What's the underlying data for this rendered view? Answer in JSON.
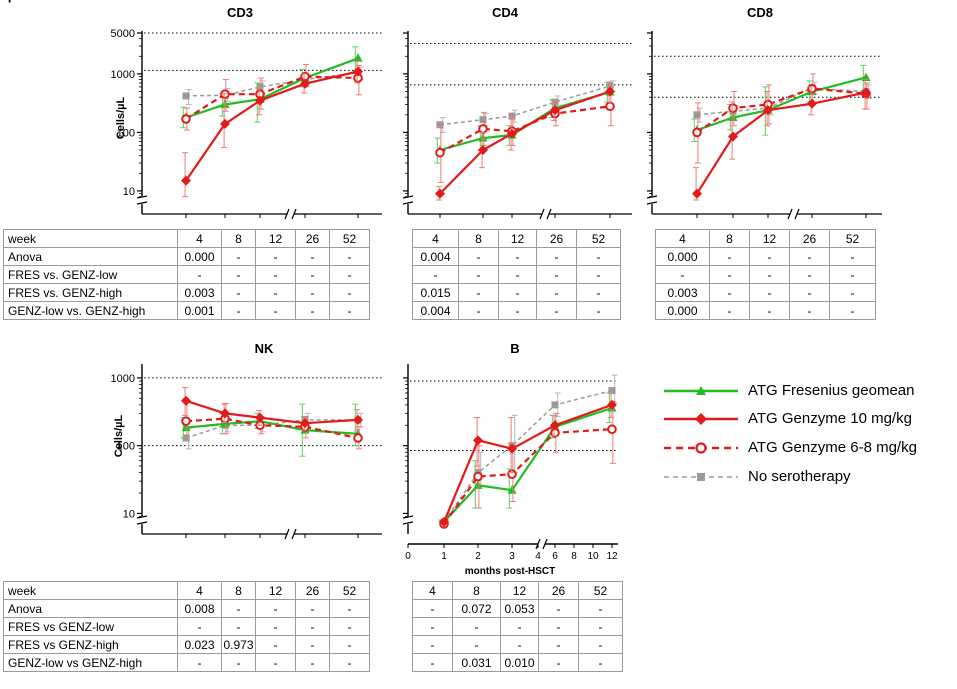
{
  "chart_data": [
    {
      "id": "cd3",
      "type": "line",
      "title": "CD3",
      "ylabel": "Cells/µL",
      "yscale": "log",
      "ylim": [
        7,
        5000
      ],
      "yticks": [
        10,
        100,
        1000,
        5000
      ],
      "ytick_labels": [
        "10",
        "100",
        "1000",
        "5000"
      ],
      "x": [
        4,
        8,
        12,
        26,
        52
      ],
      "reference_lines": [
        5000,
        1150
      ],
      "series": [
        {
          "name": "ATG Fresenius geomean",
          "values": [
            180,
            300,
            370,
            850,
            1850
          ],
          "err_low": [
            120,
            190,
            150,
            600,
            1050
          ],
          "err_high": [
            270,
            460,
            700,
            1200,
            2900
          ]
        },
        {
          "name": "ATG Genzyme 10 mg/kg",
          "values": [
            15,
            140,
            350,
            680,
            1100
          ],
          "err_low": [
            8,
            55,
            200,
            470,
            700
          ],
          "err_high": [
            45,
            460,
            560,
            1000,
            1650
          ]
        },
        {
          "name": "ATG Genzyme 6-8 mg/kg",
          "values": [
            170,
            450,
            450,
            900,
            850
          ],
          "err_low": [
            110,
            230,
            250,
            600,
            440
          ],
          "err_high": [
            260,
            800,
            850,
            1450,
            1400
          ]
        },
        {
          "name": "No serotherapy",
          "values": [
            420,
            430,
            600,
            800,
            1050
          ],
          "err_low": [
            300,
            340,
            460,
            620,
            800
          ],
          "err_high": [
            540,
            560,
            760,
            1000,
            1300
          ]
        }
      ]
    },
    {
      "id": "cd4",
      "type": "line",
      "title": "CD4",
      "ylabel": "Cells/µL",
      "yscale": "log",
      "ylim": [
        7,
        5000
      ],
      "yticks": [
        10,
        100,
        1000,
        5000
      ],
      "ytick_labels": [
        "",
        "",
        "",
        ""
      ],
      "x": [
        4,
        8,
        12,
        26,
        52
      ],
      "reference_lines": [
        3300,
        650
      ],
      "series": [
        {
          "name": "ATG Fresenius geomean",
          "values": [
            50,
            80,
            90,
            260,
            490
          ],
          "err_low": [
            30,
            50,
            60,
            180,
            330
          ],
          "err_high": [
            80,
            130,
            130,
            360,
            720
          ]
        },
        {
          "name": "ATG Genzyme 10 mg/kg",
          "values": [
            9,
            50,
            95,
            240,
            500
          ],
          "err_low": [
            7,
            25,
            50,
            160,
            330
          ],
          "err_high": [
            12,
            100,
            170,
            350,
            720
          ]
        },
        {
          "name": "ATG Genzyme 6-8 mg/kg",
          "values": [
            45,
            115,
            105,
            210,
            280
          ],
          "err_low": [
            14,
            60,
            60,
            130,
            130
          ],
          "err_high": [
            140,
            220,
            190,
            330,
            600
          ]
        },
        {
          "name": "No serotherapy",
          "values": [
            135,
            165,
            190,
            330,
            620
          ],
          "err_low": [
            100,
            130,
            150,
            260,
            500
          ],
          "err_high": [
            180,
            210,
            240,
            420,
            760
          ]
        }
      ]
    },
    {
      "id": "cd8",
      "type": "line",
      "title": "CD8",
      "ylabel": "Cells/µL",
      "yscale": "log",
      "ylim": [
        7,
        5000
      ],
      "yticks": [
        10,
        100,
        1000,
        5000
      ],
      "ytick_labels": [
        "",
        "",
        "",
        ""
      ],
      "x": [
        4,
        8,
        12,
        26,
        52
      ],
      "reference_lines": [
        2000,
        400
      ],
      "series": [
        {
          "name": "ATG Fresenius geomean",
          "values": [
            110,
            180,
            240,
            500,
            870
          ],
          "err_low": [
            70,
            110,
            90,
            330,
            520
          ],
          "err_high": [
            170,
            300,
            600,
            760,
            1400
          ]
        },
        {
          "name": "ATG Genzyme 10 mg/kg",
          "values": [
            9,
            85,
            240,
            310,
            480
          ],
          "err_low": [
            7,
            35,
            130,
            200,
            250
          ],
          "err_high": [
            25,
            330,
            500,
            600,
            800
          ]
        },
        {
          "name": "ATG Genzyme 6-8 mg/kg",
          "values": [
            100,
            260,
            300,
            560,
            460
          ],
          "err_low": [
            30,
            130,
            140,
            300,
            250
          ],
          "err_high": [
            320,
            500,
            650,
            1000,
            700
          ]
        },
        {
          "name": "No serotherapy",
          "values": [
            200,
            230,
            260,
            570,
            500
          ],
          "err_low": [
            150,
            180,
            200,
            450,
            380
          ],
          "err_high": [
            260,
            290,
            330,
            720,
            650
          ]
        }
      ]
    },
    {
      "id": "nk",
      "type": "line",
      "title": "NK",
      "ylabel": "Cells/µL",
      "yscale": "log",
      "ylim": [
        8,
        1500
      ],
      "yticks": [
        10,
        100,
        1000
      ],
      "ytick_labels": [
        "10",
        "100",
        "1000"
      ],
      "x": [
        4,
        8,
        12,
        26,
        52
      ],
      "reference_lines": [
        1000,
        100
      ],
      "series": [
        {
          "name": "ATG Fresenius geomean",
          "values": [
            185,
            210,
            230,
            170,
            150
          ],
          "err_low": [
            130,
            150,
            180,
            70,
            100
          ],
          "err_high": [
            260,
            300,
            300,
            410,
            410
          ]
        },
        {
          "name": "ATG Genzyme 10 mg/kg",
          "values": [
            460,
            300,
            260,
            215,
            240
          ],
          "err_low": [
            280,
            220,
            200,
            170,
            170
          ],
          "err_high": [
            720,
            410,
            330,
            270,
            340
          ]
        },
        {
          "name": "ATG Genzyme 6-8 mg/kg",
          "values": [
            230,
            250,
            200,
            190,
            130
          ],
          "err_low": [
            120,
            150,
            150,
            130,
            90
          ],
          "err_high": [
            440,
            420,
            270,
            270,
            190
          ]
        },
        {
          "name": "No serotherapy",
          "values": [
            130,
            200,
            200,
            240,
            240
          ],
          "err_low": [
            90,
            160,
            160,
            190,
            190
          ],
          "err_high": [
            180,
            250,
            250,
            300,
            300
          ]
        }
      ]
    },
    {
      "id": "b",
      "type": "line",
      "title": "B",
      "ylabel": "",
      "xlabel": "months post-HSCT",
      "yscale": "log",
      "ylim": [
        8,
        1500
      ],
      "yticks": [
        10,
        100,
        1000
      ],
      "ytick_labels": [
        "",
        "",
        ""
      ],
      "x": [
        1,
        2,
        3,
        6,
        12
      ],
      "xticks": [
        0,
        1,
        2,
        3,
        4,
        6,
        8,
        10,
        12
      ],
      "xtick_labels": [
        "0",
        "1",
        "2",
        "3",
        "4",
        "6",
        "8",
        "10",
        "12"
      ],
      "reference_lines": [
        900,
        85
      ],
      "series": [
        {
          "name": "ATG Fresenius geomean",
          "values": [
            7.5,
            26,
            22,
            190,
            360
          ],
          "err_low": [
            7,
            12,
            12,
            130,
            220
          ],
          "err_high": [
            8,
            60,
            45,
            280,
            600
          ]
        },
        {
          "name": "ATG Genzyme 10 mg/kg",
          "values": [
            7.5,
            120,
            90,
            200,
            400
          ],
          "err_low": [
            7,
            50,
            40,
            140,
            260
          ],
          "err_high": [
            8,
            260,
            260,
            280,
            620
          ]
        },
        {
          "name": "ATG Genzyme 6-8 mg/kg",
          "values": [
            7,
            35,
            38,
            155,
            175
          ],
          "err_low": [
            6.5,
            12,
            15,
            80,
            55
          ],
          "err_high": [
            7.5,
            100,
            100,
            300,
            450
          ]
        },
        {
          "name": "No serotherapy",
          "values": [
            7.5,
            40,
            100,
            400,
            650
          ],
          "err_low": [
            7,
            25,
            40,
            270,
            430
          ],
          "err_high": [
            8,
            80,
            280,
            600,
            1100
          ]
        }
      ]
    }
  ],
  "legend": {
    "items": [
      {
        "label": "ATG Fresenius geomean",
        "color": "#22bb22",
        "marker": "triangle",
        "dash": "solid"
      },
      {
        "label": "ATG Genzyme 10 mg/kg",
        "color": "#e21a1a",
        "marker": "diamond",
        "dash": "solid"
      },
      {
        "label": "ATG Genzyme 6-8 mg/kg",
        "color": "#e21a1a",
        "marker": "open-circle",
        "dash": "dashed"
      },
      {
        "label": "No serotherapy",
        "color": "#9a9a9a",
        "marker": "square",
        "dash": "dashed"
      }
    ]
  },
  "tables": {
    "top_left": {
      "header": [
        "week",
        "4",
        "8",
        "12",
        "26",
        "52"
      ],
      "rows": [
        [
          "Anova",
          "0.000",
          "-",
          "-",
          "-",
          "-"
        ],
        [
          "FRES vs. GENZ-low",
          "-",
          "-",
          "-",
          "-",
          "-"
        ],
        [
          "FRES vs. GENZ-high",
          "0.003",
          "-",
          "-",
          "-",
          "-"
        ],
        [
          "GENZ-low vs. GENZ-high",
          "0.001",
          "-",
          "-",
          "-",
          "-"
        ]
      ]
    },
    "top_mid": {
      "header": [
        "4",
        "8",
        "12",
        "26",
        "52"
      ],
      "rows": [
        [
          "0.004",
          "-",
          "-",
          "-",
          "-"
        ],
        [
          "-",
          "-",
          "-",
          "-",
          "-"
        ],
        [
          "0.015",
          "-",
          "-",
          "-",
          "-"
        ],
        [
          "0.004",
          "-",
          "-",
          "-",
          "-"
        ]
      ]
    },
    "top_right": {
      "header": [
        "4",
        "8",
        "12",
        "26",
        "52"
      ],
      "rows": [
        [
          "0.000",
          "-",
          "-",
          "-",
          "-"
        ],
        [
          "-",
          "-",
          "-",
          "-",
          "-"
        ],
        [
          "0.003",
          "-",
          "-",
          "-",
          "-"
        ],
        [
          "0.000",
          "-",
          "-",
          "-",
          "-"
        ]
      ]
    },
    "bottom_left": {
      "header": [
        "week",
        "4",
        "8",
        "12",
        "26",
        "52"
      ],
      "rows": [
        [
          "Anova",
          "0.008",
          "-",
          "-",
          "-",
          "-"
        ],
        [
          "FRES vs GENZ-low",
          "-",
          "-",
          "-",
          "-",
          "-"
        ],
        [
          "FRES vs GENZ-high",
          "0.023",
          "0.973",
          "-",
          "-",
          "-"
        ],
        [
          "GENZ-low vs GENZ-high",
          "-",
          "-",
          "-",
          "-",
          "-"
        ]
      ]
    },
    "bottom_mid": {
      "header": [
        "4",
        "8",
        "12",
        "26",
        "52"
      ],
      "rows": [
        [
          "-",
          "0.072",
          "0.053",
          "-",
          "-"
        ],
        [
          "-",
          "-",
          "-",
          "-",
          "-"
        ],
        [
          "-",
          "-",
          "-",
          "-",
          "-"
        ],
        [
          "-",
          "0.031",
          "0.010",
          "-",
          "-"
        ]
      ]
    }
  }
}
